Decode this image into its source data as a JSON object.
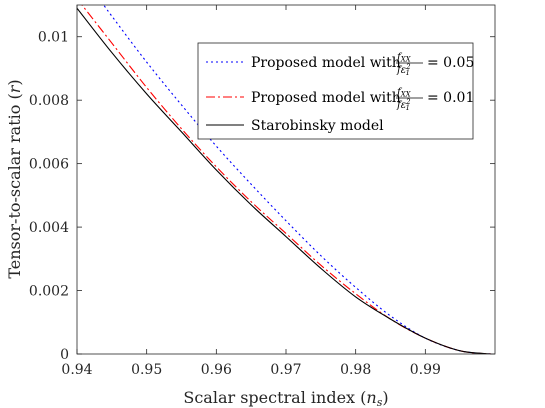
{
  "chart_data": {
    "type": "line",
    "xlabel": "Scalar spectral index (n_s)",
    "xlabel_main": "Scalar spectral index (",
    "xlabel_var": "n",
    "xlabel_sub": "s",
    "xlabel_close": ")",
    "ylabel": "Tensor-to-scalar ratio (r)",
    "ylabel_main": "Tensor-to-scalar ratio (",
    "ylabel_var": "r",
    "ylabel_close": ")",
    "xlim": [
      0.94,
      1.0
    ],
    "ylim": [
      0,
      0.011
    ],
    "xticks": [
      0.94,
      0.95,
      0.96,
      0.97,
      0.98,
      0.99
    ],
    "xtick_labels": [
      "0.94",
      "0.95",
      "0.96",
      "0.97",
      "0.98",
      "0.99"
    ],
    "yticks": [
      0,
      0.002,
      0.004,
      0.006,
      0.008,
      0.01
    ],
    "ytick_labels": [
      "0",
      "0.002",
      "0.004",
      "0.006",
      "0.008",
      "0.01"
    ],
    "grid": false,
    "legend_position": "top-right",
    "series": [
      {
        "name": "Proposed model with fXX/fε1² = 0.05",
        "legend_prefix": "Proposed model with",
        "legend_suffix": "= 0.05",
        "color": "#0000ff",
        "style": "dotted",
        "x": [
          0.9435,
          0.945,
          0.95,
          0.955,
          0.96,
          0.965,
          0.97,
          0.975,
          0.98,
          0.985,
          0.99,
          0.995,
          0.9995
        ],
        "y": [
          0.0111,
          0.01065,
          0.0092,
          0.00785,
          0.00655,
          0.00535,
          0.0042,
          0.0031,
          0.0021,
          0.0012,
          0.0005,
          0.0001,
          0.0
        ]
      },
      {
        "name": "Proposed model with fXX/fε1² = 0.01",
        "legend_prefix": "Proposed model with",
        "legend_suffix": "= 0.01",
        "color": "#ff0000",
        "style": "dashdot",
        "x": [
          0.94,
          0.945,
          0.95,
          0.955,
          0.96,
          0.965,
          0.97,
          0.975,
          0.98,
          0.985,
          0.99,
          0.995,
          0.9995
        ],
        "y": [
          0.0112,
          0.0098,
          0.0084,
          0.0071,
          0.0059,
          0.0048,
          0.0038,
          0.0028,
          0.0019,
          0.0011,
          0.0005,
          0.0001,
          0.0
        ]
      },
      {
        "name": "Starobinsky model",
        "legend_prefix": "Starobinsky model",
        "legend_suffix": "",
        "color": "#000000",
        "style": "solid",
        "x": [
          0.94,
          0.945,
          0.95,
          0.955,
          0.96,
          0.965,
          0.97,
          0.975,
          0.98,
          0.985,
          0.99,
          0.995,
          0.9995
        ],
        "y": [
          0.0109,
          0.0095,
          0.0082,
          0.007,
          0.0058,
          0.0047,
          0.0037,
          0.0027,
          0.0018,
          0.0011,
          0.0005,
          0.0001,
          0.0
        ]
      }
    ],
    "legend_fraction": {
      "numerator": "fXX",
      "numerator_var": "f",
      "numerator_sub": "XX",
      "denominator_var": "f",
      "denominator_eps": "ε",
      "denominator_sub": "1",
      "denominator_sup": "2"
    }
  }
}
